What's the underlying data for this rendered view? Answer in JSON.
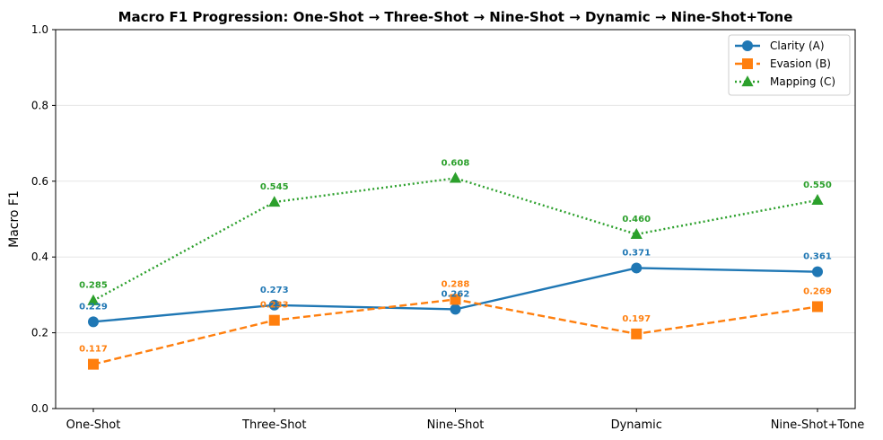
{
  "chart_data": {
    "type": "line",
    "title": "Macro F1 Progression: One-Shot → Three-Shot → Nine-Shot → Dynamic → Nine-Shot+Tone",
    "xlabel": "",
    "ylabel": "Macro F1",
    "ylim": [
      0,
      1.0
    ],
    "yticks": [
      "0.0",
      "0.2",
      "0.4",
      "0.6",
      "0.8",
      "1.0"
    ],
    "grid": "horizontal",
    "legend": "top-right",
    "categories": [
      "One-Shot",
      "Three-Shot",
      "Nine-Shot",
      "Dynamic",
      "Nine-Shot+Tone"
    ],
    "series": [
      {
        "name": "Clarity (A)",
        "color": "#1f77b4",
        "marker": "circle",
        "dash": "solid",
        "values": [
          0.229,
          0.273,
          0.262,
          0.371,
          0.361
        ],
        "labels": [
          "0.229",
          "0.273",
          "0.262",
          "0.371",
          "0.361"
        ]
      },
      {
        "name": "Evasion (B)",
        "color": "#ff7f0e",
        "marker": "square",
        "dash": "dashed",
        "values": [
          0.117,
          0.233,
          0.288,
          0.197,
          0.269
        ],
        "labels": [
          "0.117",
          "0.233",
          "0.288",
          "0.197",
          "0.269"
        ]
      },
      {
        "name": "Mapping (C)",
        "color": "#2ca02c",
        "marker": "triangle",
        "dash": "dotted",
        "values": [
          0.285,
          0.545,
          0.608,
          0.46,
          0.55
        ],
        "labels": [
          "0.285",
          "0.545",
          "0.608",
          "0.460",
          "0.550"
        ]
      }
    ]
  }
}
